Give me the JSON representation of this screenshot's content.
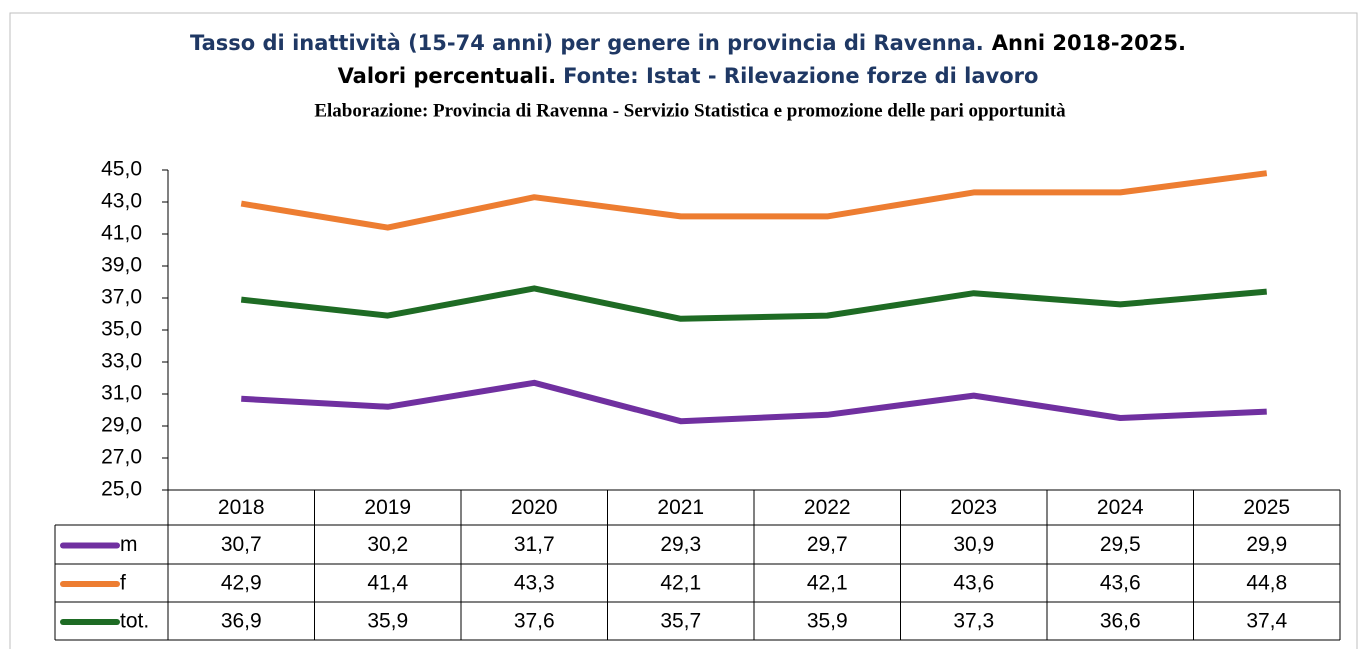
{
  "chart_data": {
    "type": "line",
    "title": "Tasso di inattività (15-74 anni) per genere in provincia di Ravenna.",
    "title_period": "Anni 2018-2025.",
    "subtitle": "Valori percentuali.",
    "source": "Fonte: Istat - Rilevazione forze di lavoro",
    "credit": "Elaborazione: Provincia di Ravenna - Servizio Statistica e promozione delle pari opportunità",
    "categories": [
      "2018",
      "2019",
      "2020",
      "2021",
      "2022",
      "2023",
      "2024",
      "2025"
    ],
    "series": [
      {
        "name": "m",
        "color": "#7030a0",
        "values": [
          30.7,
          30.2,
          31.7,
          29.3,
          29.7,
          30.9,
          29.5,
          29.9
        ],
        "value_labels": [
          "30,7",
          "30,2",
          "31,7",
          "29,3",
          "29,7",
          "30,9",
          "29,5",
          "29,9"
        ]
      },
      {
        "name": "f",
        "color": "#ed7d31",
        "values": [
          42.9,
          41.4,
          43.3,
          42.1,
          42.1,
          43.6,
          43.6,
          44.8
        ],
        "value_labels": [
          "42,9",
          "41,4",
          "43,3",
          "42,1",
          "42,1",
          "43,6",
          "43,6",
          "44,8"
        ]
      },
      {
        "name": "tot.",
        "color": "#1e6b24",
        "values": [
          36.9,
          35.9,
          37.6,
          35.7,
          35.9,
          37.3,
          36.6,
          37.4
        ],
        "value_labels": [
          "36,9",
          "35,9",
          "37,6",
          "35,7",
          "35,9",
          "37,3",
          "36,6",
          "37,4"
        ]
      }
    ],
    "ylim": [
      25,
      45
    ],
    "yticks": [
      {
        "value": 25,
        "label": "25,0"
      },
      {
        "value": 27,
        "label": "27,0"
      },
      {
        "value": 29,
        "label": "29,0"
      },
      {
        "value": 31,
        "label": "31,0"
      },
      {
        "value": 33,
        "label": "33,0"
      },
      {
        "value": 35,
        "label": "35,0"
      },
      {
        "value": 37,
        "label": "37,0"
      },
      {
        "value": 39,
        "label": "39,0"
      },
      {
        "value": 41,
        "label": "41,0"
      },
      {
        "value": 43,
        "label": "43,0"
      },
      {
        "value": 45,
        "label": "45,0"
      }
    ]
  }
}
